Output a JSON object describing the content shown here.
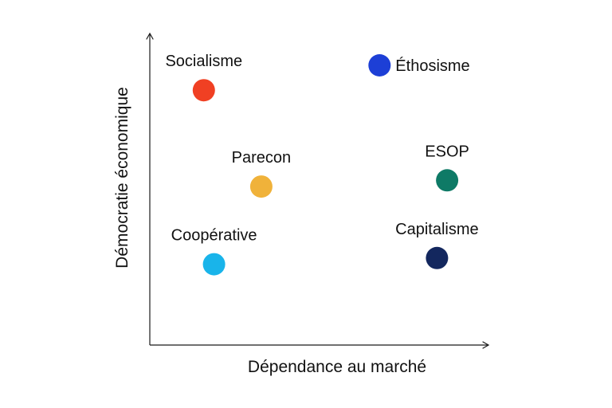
{
  "axes": {
    "x_title": "Dépendance au marché",
    "y_title": "Démocratie économique"
  },
  "points": [
    {
      "id": "socialisme",
      "label": "Socialisme",
      "color": "#f04023",
      "market_dependence": 0.16,
      "economic_democracy": 0.82,
      "label_side": "above"
    },
    {
      "id": "ethosisme",
      "label": "Éthosisme",
      "color": "#1d3fd6",
      "market_dependence": 0.68,
      "economic_democracy": 0.9,
      "label_side": "right"
    },
    {
      "id": "parecon",
      "label": "Parecon",
      "color": "#f0b23a",
      "market_dependence": 0.33,
      "economic_democracy": 0.51,
      "label_side": "above"
    },
    {
      "id": "esop",
      "label": "ESOP",
      "color": "#0e7a66",
      "market_dependence": 0.88,
      "economic_democracy": 0.53,
      "label_side": "above"
    },
    {
      "id": "cooperative",
      "label": "Coopérative",
      "color": "#19b4ea",
      "market_dependence": 0.19,
      "economic_democracy": 0.26,
      "label_side": "above"
    },
    {
      "id": "capitalisme",
      "label": "Capitalisme",
      "color": "#13275e",
      "market_dependence": 0.85,
      "economic_democracy": 0.28,
      "label_side": "above"
    }
  ]
}
